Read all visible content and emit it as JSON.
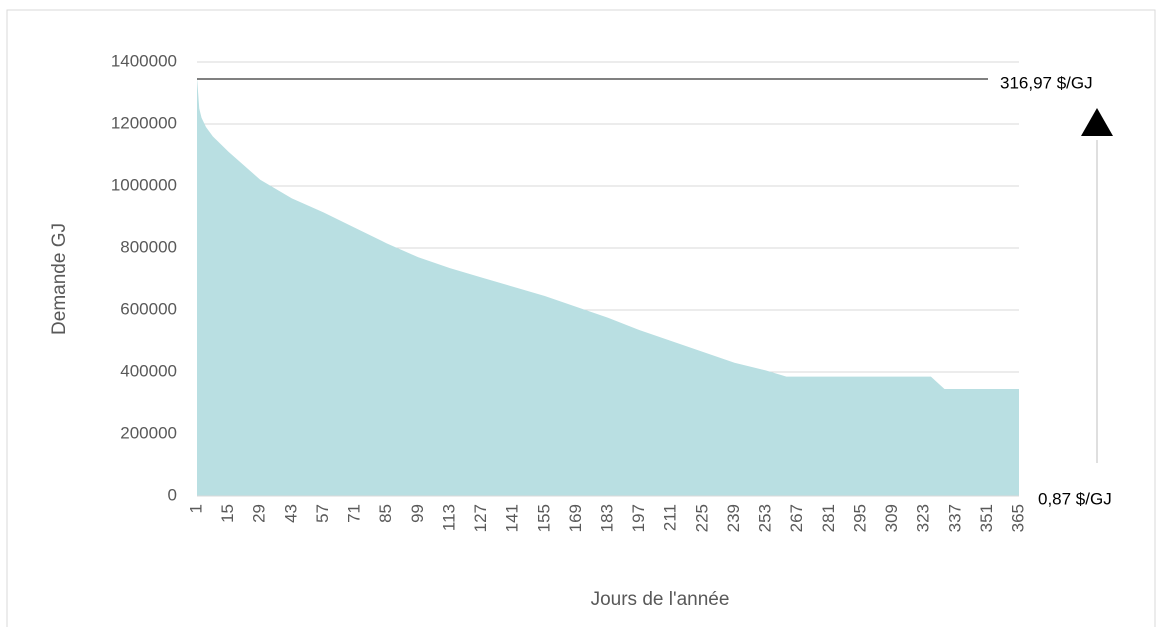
{
  "chart_data": {
    "type": "area",
    "y_label": "Demande GJ",
    "x_label": "Jours de l'année",
    "x": [
      1,
      2,
      3,
      5,
      8,
      15,
      29,
      43,
      57,
      71,
      85,
      99,
      113,
      127,
      141,
      155,
      169,
      183,
      197,
      211,
      225,
      239,
      253,
      262,
      326,
      332,
      365
    ],
    "values": [
      1350000,
      1250000,
      1220000,
      1190000,
      1160000,
      1110000,
      1020000,
      960000,
      915000,
      865000,
      815000,
      770000,
      735000,
      705000,
      675000,
      645000,
      610000,
      575000,
      535000,
      500000,
      465000,
      430000,
      405000,
      385000,
      385000,
      345000,
      345000
    ],
    "color": "#b9dfe2",
    "xlim": [
      1,
      365
    ],
    "xticks": [
      1,
      15,
      29,
      43,
      57,
      71,
      85,
      99,
      113,
      127,
      141,
      155,
      169,
      183,
      197,
      211,
      225,
      239,
      253,
      267,
      281,
      295,
      309,
      323,
      337,
      351,
      365
    ],
    "ylim": [
      0,
      1400000
    ],
    "yticks": [
      0,
      200000,
      400000,
      600000,
      800000,
      1000000,
      1200000,
      1400000
    ],
    "grid": true,
    "price_line": 1345000,
    "high_label": "316,97 $/GJ",
    "low_label": "0,87 $/GJ"
  }
}
